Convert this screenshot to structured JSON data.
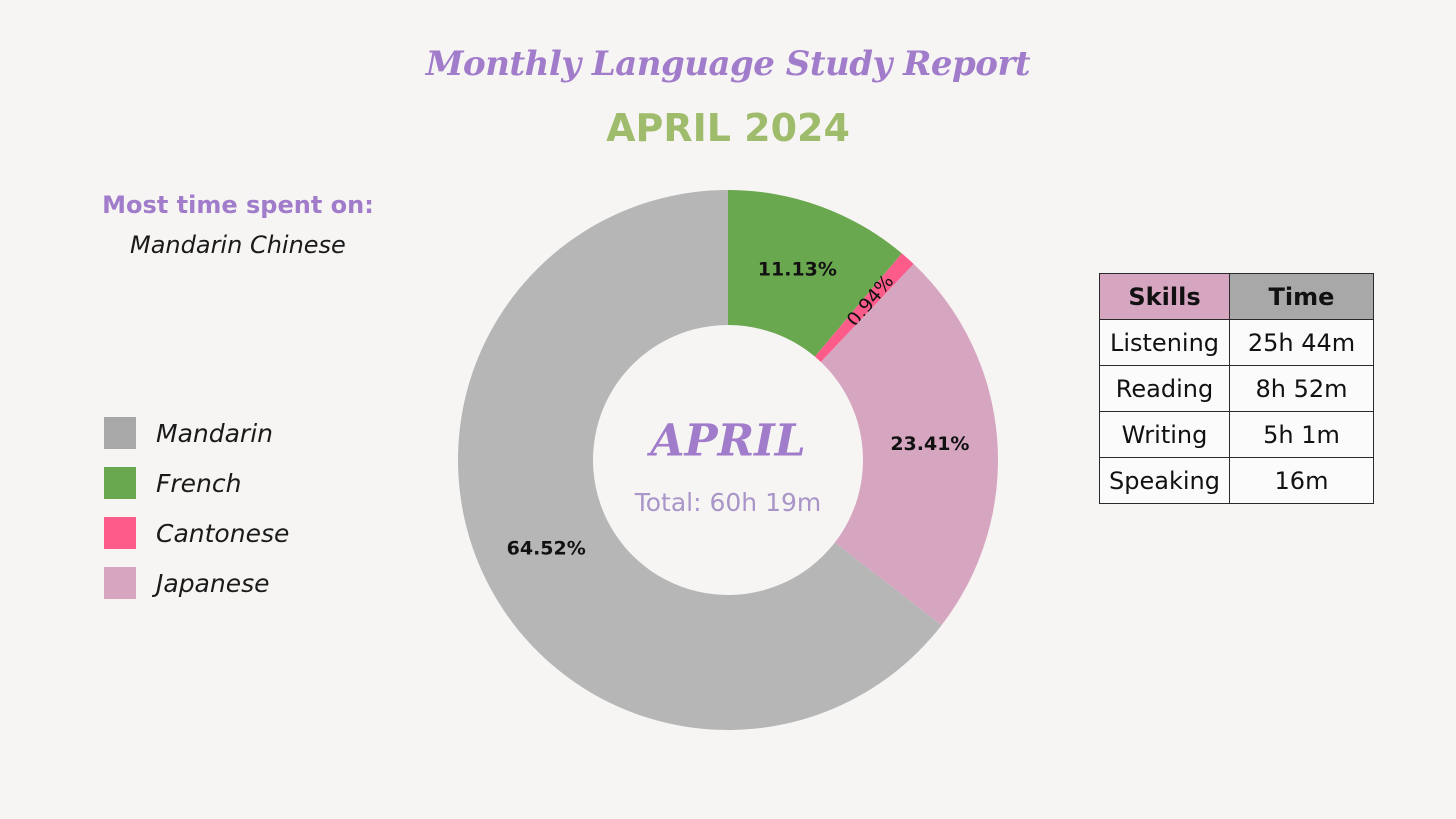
{
  "header": {
    "title": "Monthly Language Study Report",
    "subtitle": "APRIL 2024"
  },
  "summary": {
    "most_time_label": "Most time spent on:",
    "most_time_value": "Mandarin Chinese"
  },
  "chart_data": {
    "type": "pie",
    "donut": true,
    "center_title": "APRIL",
    "center_subtitle": "Total: 60h 19m",
    "categories": [
      "French",
      "Cantonese",
      "Japanese",
      "Mandarin"
    ],
    "values": [
      11.13,
      0.94,
      23.41,
      64.52
    ],
    "labels": [
      "11.13%",
      "0.94%",
      "23.41%",
      "64.52%"
    ],
    "colors": [
      "#6aa84f",
      "#fd5b8a",
      "#d6a6c1",
      "#b6b6b6"
    ],
    "legend": {
      "placement": "left",
      "entries": [
        {
          "label": "Mandarin",
          "color": "#a8a8a8"
        },
        {
          "label": "French",
          "color": "#6aa84f"
        },
        {
          "label": "Cantonese",
          "color": "#fd5b8a"
        },
        {
          "label": "Japanese",
          "color": "#d6a6c1"
        }
      ]
    }
  },
  "skills_table": {
    "headers": [
      "Skills",
      "Time"
    ],
    "header_colors": [
      "#d6a6c1",
      "#a8a8a8"
    ],
    "rows": [
      [
        "Listening",
        "25h 44m"
      ],
      [
        "Reading",
        "8h 52m"
      ],
      [
        "Writing",
        "5h 1m"
      ],
      [
        "Speaking",
        "16m"
      ]
    ]
  },
  "theme": {
    "accent_purple": "#a07ccb",
    "accent_green": "#9fbc6c",
    "background": "#f7f5f3"
  }
}
